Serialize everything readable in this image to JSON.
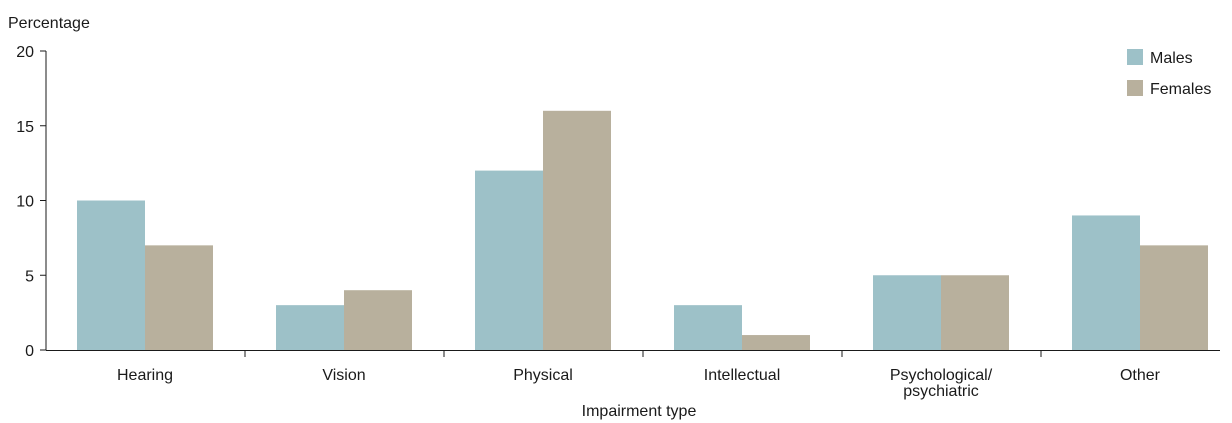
{
  "chart_data": {
    "type": "bar",
    "title": "",
    "ylabel": "Percentage",
    "xlabel": "Impairment type",
    "categories": [
      "Hearing",
      "Vision",
      "Physical",
      "Intellectual",
      "Psychological/ psychiatric",
      "Other"
    ],
    "category_label_lines": [
      [
        "Hearing"
      ],
      [
        "Vision"
      ],
      [
        "Physical"
      ],
      [
        "Intellectual"
      ],
      [
        "Psychological/",
        "psychiatric"
      ],
      [
        "Other"
      ]
    ],
    "series": [
      {
        "name": "Males",
        "color": "#9dc1c8",
        "values": [
          10,
          3,
          12,
          3,
          5,
          9
        ]
      },
      {
        "name": "Females",
        "color": "#b8b09d",
        "values": [
          7,
          4,
          16,
          1,
          5,
          7
        ]
      }
    ],
    "ylim": [
      0,
      20
    ],
    "yticks": [
      0,
      5,
      10,
      15,
      20
    ],
    "grid": false,
    "legend_position": "top-right"
  }
}
